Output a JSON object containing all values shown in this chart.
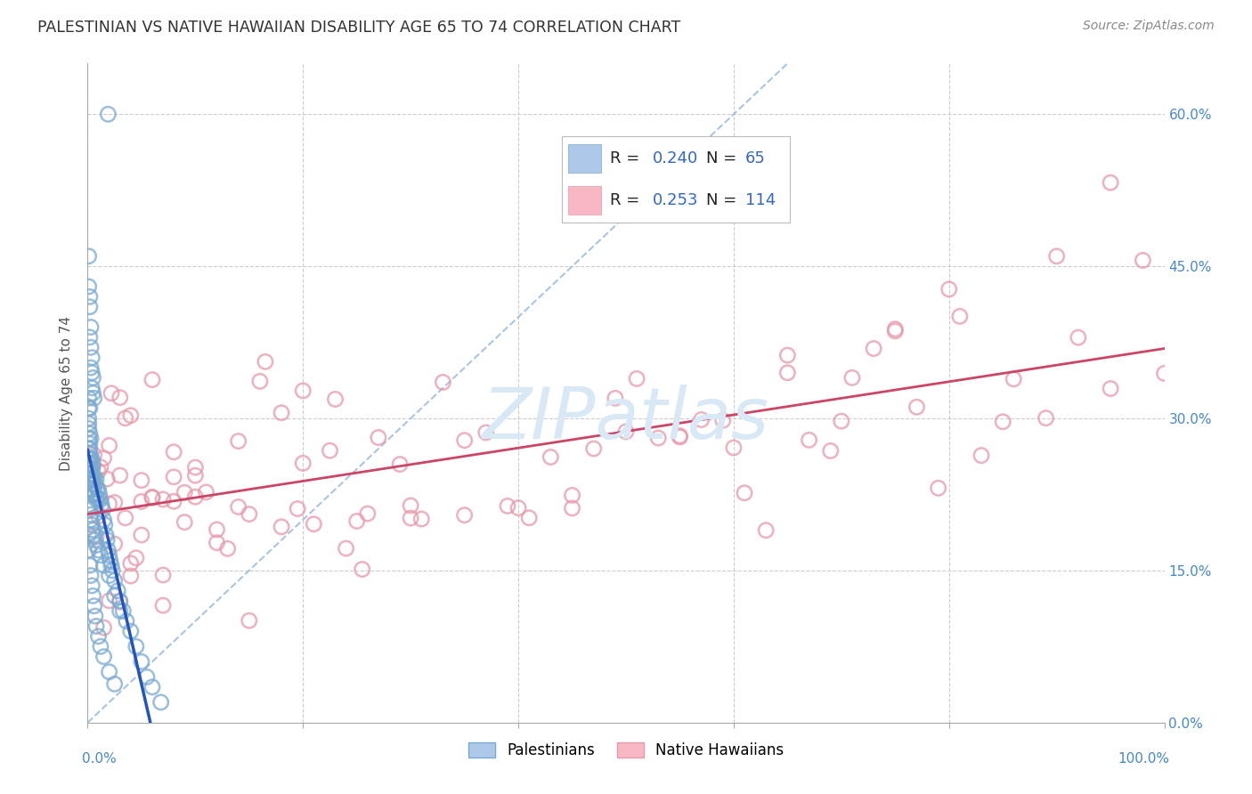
{
  "title": "PALESTINIAN VS NATIVE HAWAIIAN DISABILITY AGE 65 TO 74 CORRELATION CHART",
  "source": "Source: ZipAtlas.com",
  "ylabel": "Disability Age 65 to 74",
  "ytick_values": [
    0.0,
    0.15,
    0.3,
    0.45,
    0.6
  ],
  "xlim": [
    0.0,
    1.0
  ],
  "ylim": [
    0.0,
    0.65
  ],
  "blue_fill": "#adc8e8",
  "blue_edge": "#7aaad0",
  "pink_fill": "#f7b8c4",
  "pink_edge": "#e898aa",
  "blue_line_color": "#2255bb",
  "pink_line_color": "#cc4466",
  "diag_color": "#99bbdd",
  "background_color": "#ffffff",
  "grid_color": "#cccccc",
  "title_color": "#333333",
  "source_color": "#888888",
  "axis_label_color": "#555555",
  "tick_label_color": "#4488cc",
  "watermark_color": "#d8e8f4",
  "legend_text_color": "#222222",
  "legend_val_color": "#3366cc"
}
